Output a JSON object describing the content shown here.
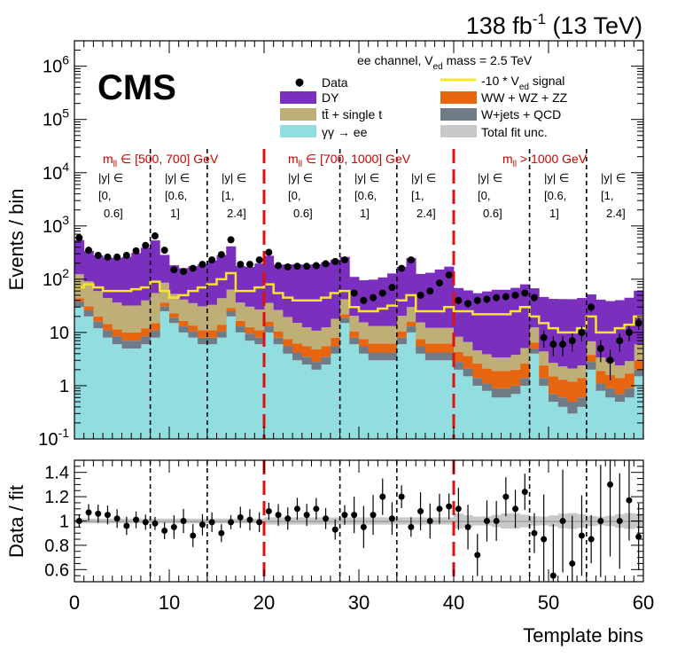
{
  "header": {
    "lumi": "138 fb",
    "lumi_exp": "-1",
    "energy": "(13 TeV)",
    "experiment": "CMS",
    "channel_prefix": "ee channel, V",
    "channel_sub": "ed",
    "channel_suffix": " mass = 2.5 TeV"
  },
  "legend": {
    "data": "Data",
    "dy": "DY",
    "tt": "tt̄ + single t",
    "gg": "γγ → ee",
    "signal_prefix": "-10 * V",
    "signal_sub": "ed",
    "signal_suffix": " signal",
    "vv": "WW + WZ + ZZ",
    "wj": "W+jets + QCD",
    "unc": "Total fit unc."
  },
  "regions": {
    "r1": "m",
    "r1_sub": "ll",
    "r1_text": " ∈ [500, 700] GeV",
    "r2": "m",
    "r2_sub": "ll",
    "r2_text": " ∈ [700, 1000] GeV",
    "r3": "m",
    "r3_sub": "ll",
    "r3_text": " > 1000 GeV"
  },
  "rapidity": {
    "l1": "|y| ∈",
    "b1a": "[0,",
    "b1b": "0.6]",
    "b2a": "[0.6,",
    "b2b": "1]",
    "b3a": "[1,",
    "b3b": "2.4]"
  },
  "colors": {
    "dy": "#7b2fbe",
    "tt": "#bfae76",
    "gg": "#92dde0",
    "vv": "#e8650f",
    "wj": "#6f7b86",
    "signal": "#f5e629",
    "unc": "#c8c8c8",
    "divider": "#dd1111"
  },
  "chart_data": {
    "type": "stacked-bar",
    "xlabel": "Template bins",
    "ylabel_top": "Events / bin",
    "ylabel_bottom": "Data / fit",
    "xlim": [
      0,
      60
    ],
    "ylim_top": [
      0.1,
      3000000
    ],
    "ylim_bottom": [
      0.5,
      1.5
    ],
    "x_ticks": [
      0,
      10,
      20,
      30,
      40,
      50,
      60
    ],
    "y_ticks_top": [
      "10^-1",
      "1",
      "10",
      "10^2",
      "10^3",
      "10^4",
      "10^5",
      "10^6"
    ],
    "y_ticks_bottom": [
      "0.6",
      "0.8",
      "1",
      "1.2",
      "1.4"
    ],
    "region_boundaries": [
      20,
      40
    ],
    "rapidity_boundaries": [
      8,
      14,
      28,
      34,
      48,
      54
    ],
    "series": [
      {
        "name": "γγ → ee",
        "values": [
          30,
          20,
          12,
          8,
          6,
          5,
          5,
          6,
          8,
          25,
          15,
          10,
          8,
          6,
          6,
          8,
          20,
          10,
          7,
          6,
          10,
          6,
          4,
          3,
          2.5,
          2,
          2.5,
          4,
          15,
          6,
          4,
          3,
          3,
          3,
          6,
          10,
          4,
          3,
          3,
          3,
          2,
          1.5,
          1,
          0.8,
          0.6,
          0.6,
          0.7,
          1,
          4,
          1,
          0.5,
          0.4,
          0.3,
          0.4,
          2,
          0.8,
          0.6,
          0.5,
          0.6,
          1.5
        ]
      },
      {
        "name": "W+jets + QCD",
        "values": [
          8,
          6,
          4,
          3,
          2.5,
          2,
          2,
          2.5,
          3,
          6,
          4,
          3,
          2.5,
          2,
          2,
          2.5,
          5,
          3,
          2.5,
          2,
          3,
          2,
          1.5,
          1.2,
          1,
          0.8,
          1,
          1.5,
          4,
          2,
          1.5,
          1.2,
          1.2,
          1.2,
          2,
          3,
          1.5,
          1.2,
          1.2,
          1.2,
          0.8,
          0.6,
          0.4,
          0.3,
          0.3,
          0.3,
          0.3,
          0.4,
          1,
          0.4,
          0.2,
          0.2,
          0.2,
          0.2,
          0.8,
          0.3,
          0.3,
          0.2,
          0.3,
          0.5
        ]
      },
      {
        "name": "WW + WZ + ZZ",
        "values": [
          6,
          5,
          4,
          3.5,
          3,
          3,
          3,
          3.5,
          4,
          5,
          4,
          3.5,
          3,
          3,
          3,
          3.5,
          4,
          3.5,
          3,
          3,
          3,
          2.5,
          2,
          2,
          2,
          2,
          2,
          2.5,
          3,
          2.5,
          2,
          2,
          2,
          2,
          2.5,
          3,
          2,
          2,
          2,
          2,
          1.5,
          1.5,
          1.2,
          1,
          1,
          1,
          1,
          1.2,
          1.5,
          1,
          0.8,
          0.7,
          0.7,
          0.8,
          1,
          0.8,
          0.7,
          0.7,
          0.8,
          1
        ]
      },
      {
        "name": "tt̄ + single t",
        "values": [
          80,
          60,
          40,
          30,
          25,
          22,
          22,
          28,
          40,
          50,
          30,
          25,
          22,
          20,
          22,
          30,
          35,
          20,
          18,
          16,
          20,
          16,
          12,
          9,
          7,
          6,
          7,
          10,
          20,
          10,
          8,
          7,
          7,
          7,
          10,
          14,
          8,
          6,
          6,
          6,
          4,
          3,
          2,
          1.8,
          1.5,
          1.5,
          1.8,
          2.5,
          6,
          2,
          1.2,
          1,
          0.9,
          1,
          3,
          1.5,
          1.2,
          1,
          1.2,
          3
        ]
      },
      {
        "name": "DY",
        "values": [
          420,
          250,
          220,
          210,
          215,
          230,
          280,
          350,
          480,
          200,
          130,
          120,
          140,
          160,
          190,
          240,
          350,
          140,
          140,
          170,
          240,
          160,
          170,
          175,
          175,
          180,
          195,
          215,
          220,
          90,
          80,
          85,
          95,
          115,
          150,
          220,
          110,
          120,
          140,
          160,
          60,
          55,
          50,
          55,
          60,
          60,
          65,
          75,
          55,
          42,
          40,
          40,
          40,
          42,
          45,
          38,
          36,
          38,
          42,
          55
        ]
      },
      {
        "name": "Data",
        "values": [
          600,
          350,
          280,
          260,
          260,
          280,
          340,
          430,
          650,
          350,
          150,
          140,
          160,
          190,
          230,
          290,
          550,
          190,
          190,
          230,
          320,
          180,
          170,
          175,
          175,
          180,
          195,
          215,
          230,
          55,
          40,
          45,
          55,
          70,
          160,
          230,
          50,
          60,
          85,
          120,
          40,
          35,
          40,
          42,
          45,
          47,
          50,
          55,
          45,
          8,
          6,
          6,
          7,
          10,
          30,
          5,
          3,
          7,
          10,
          15
        ]
      },
      {
        "name": "-10 * Ved signal",
        "values": [
          70,
          80,
          70,
          60,
          60,
          60,
          65,
          70,
          90,
          60,
          45,
          50,
          60,
          70,
          80,
          100,
          130,
          60,
          60,
          70,
          80,
          55,
          45,
          40,
          40,
          40,
          45,
          55,
          60,
          30,
          25,
          25,
          28,
          32,
          40,
          50,
          25,
          25,
          25,
          30,
          25,
          25,
          22,
          22,
          22,
          22,
          25,
          30,
          20,
          15,
          12,
          10,
          10,
          12,
          20,
          10,
          10,
          12,
          14,
          20
        ]
      },
      {
        "name": "Data / fit",
        "values": [
          1.0,
          1.07,
          1.06,
          1.05,
          1.02,
          0.96,
          1.01,
          0.99,
          0.98,
          0.92,
          0.95,
          1.0,
          0.88,
          0.97,
          0.99,
          0.9,
          0.99,
          1.03,
          1.01,
          0.99,
          1.08,
          1.05,
          1.02,
          1.1,
          1.05,
          1.1,
          1.02,
          0.93,
          1.05,
          1.05,
          0.95,
          1.05,
          1.2,
          1.02,
          1.2,
          0.95,
          1.08,
          1.0,
          1.1,
          1.12,
          1.1,
          0.95,
          0.72,
          1.0,
          1.0,
          1.2,
          1.1,
          1.24,
          0.9,
          0.85,
          0.55,
          1.0,
          0.65,
          0.88,
          0.85,
          1.0,
          1.3,
          1.0,
          1.17,
          0.87
        ]
      }
    ]
  }
}
